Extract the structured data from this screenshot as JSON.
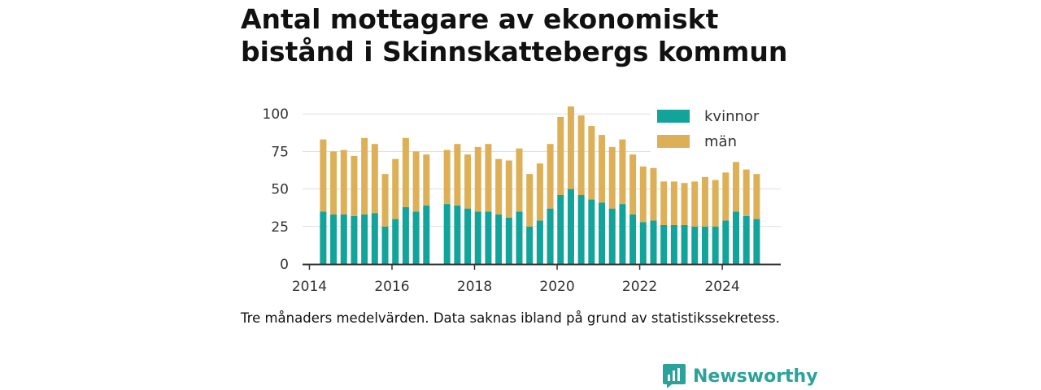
{
  "title": "Antal mottagare av ekonomiskt bistånd i Skinnskattebergs kommun",
  "footnote": "Tre månaders medelvärden. Data saknas ibland på grund av statistikssekretess.",
  "brand": {
    "name": "Newsworthy",
    "icon": "newsworthy-logo-icon"
  },
  "colors": {
    "kvinnor": "#12a39a",
    "man": "#ddb057",
    "grid": "#dddddd",
    "axis": "#333333",
    "text": "#333333"
  },
  "chart_data": {
    "type": "bar",
    "stacked": true,
    "title": "Antal mottagare av ekonomiskt bistånd i Skinnskattebergs kommun",
    "xlabel": "",
    "ylabel": "",
    "xlim": [
      "2013-11",
      "2025-06"
    ],
    "ylim": [
      0,
      105
    ],
    "y_ticks": [
      0,
      25,
      50,
      75,
      100
    ],
    "x_ticks": [
      "2014",
      "2016",
      "2018",
      "2020",
      "2022",
      "2024"
    ],
    "grid": true,
    "legend_position": "top-right",
    "categories": [
      "2014-05",
      "2014-08",
      "2014-11",
      "2015-02",
      "2015-05",
      "2015-08",
      "2015-11",
      "2016-02",
      "2016-05",
      "2016-08",
      "2016-11",
      "2017-02",
      "2017-05",
      "2017-08",
      "2017-11",
      "2018-02",
      "2018-05",
      "2018-08",
      "2018-11",
      "2019-02",
      "2019-05",
      "2019-08",
      "2019-11",
      "2020-02",
      "2020-05",
      "2020-08",
      "2020-11",
      "2021-02",
      "2021-05",
      "2021-08",
      "2021-11",
      "2022-02",
      "2022-05",
      "2022-08",
      "2022-11",
      "2023-02",
      "2023-05",
      "2023-08",
      "2023-11",
      "2024-02",
      "2024-05",
      "2024-08",
      "2024-11"
    ],
    "series": [
      {
        "name": "kvinnor",
        "values": [
          35,
          33,
          33,
          32,
          33,
          34,
          25,
          30,
          38,
          35,
          39,
          null,
          40,
          39,
          37,
          35,
          35,
          33,
          31,
          35,
          25,
          29,
          37,
          46,
          50,
          46,
          43,
          41,
          37,
          40,
          33,
          28,
          29,
          26,
          26,
          26,
          25,
          25,
          25,
          29,
          35,
          32,
          30
        ]
      },
      {
        "name": "män",
        "values": [
          48,
          42,
          43,
          40,
          51,
          46,
          35,
          40,
          46,
          40,
          34,
          null,
          36,
          41,
          36,
          43,
          45,
          37,
          38,
          42,
          35,
          38,
          43,
          52,
          55,
          53,
          49,
          45,
          41,
          43,
          40,
          37,
          35,
          29,
          29,
          28,
          30,
          33,
          31,
          32,
          33,
          31,
          30
        ]
      }
    ]
  }
}
